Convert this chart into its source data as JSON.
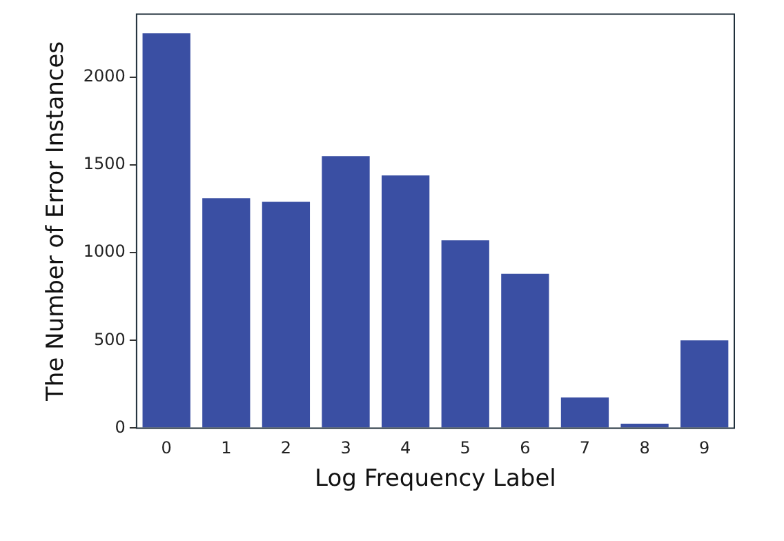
{
  "chart_data": {
    "type": "bar",
    "xlabel": "Log Frequency Label",
    "ylabel": "The Number of Error Instances",
    "categories": [
      "0",
      "1",
      "2",
      "3",
      "4",
      "5",
      "6",
      "7",
      "8",
      "9"
    ],
    "values": [
      2250,
      1310,
      1290,
      1550,
      1440,
      1070,
      880,
      175,
      25,
      500
    ],
    "color": "#3a4fa3",
    "ylim": [
      0,
      2360
    ],
    "yticks": [
      0,
      500,
      1000,
      1500,
      2000
    ],
    "grid": false,
    "legend": false
  }
}
